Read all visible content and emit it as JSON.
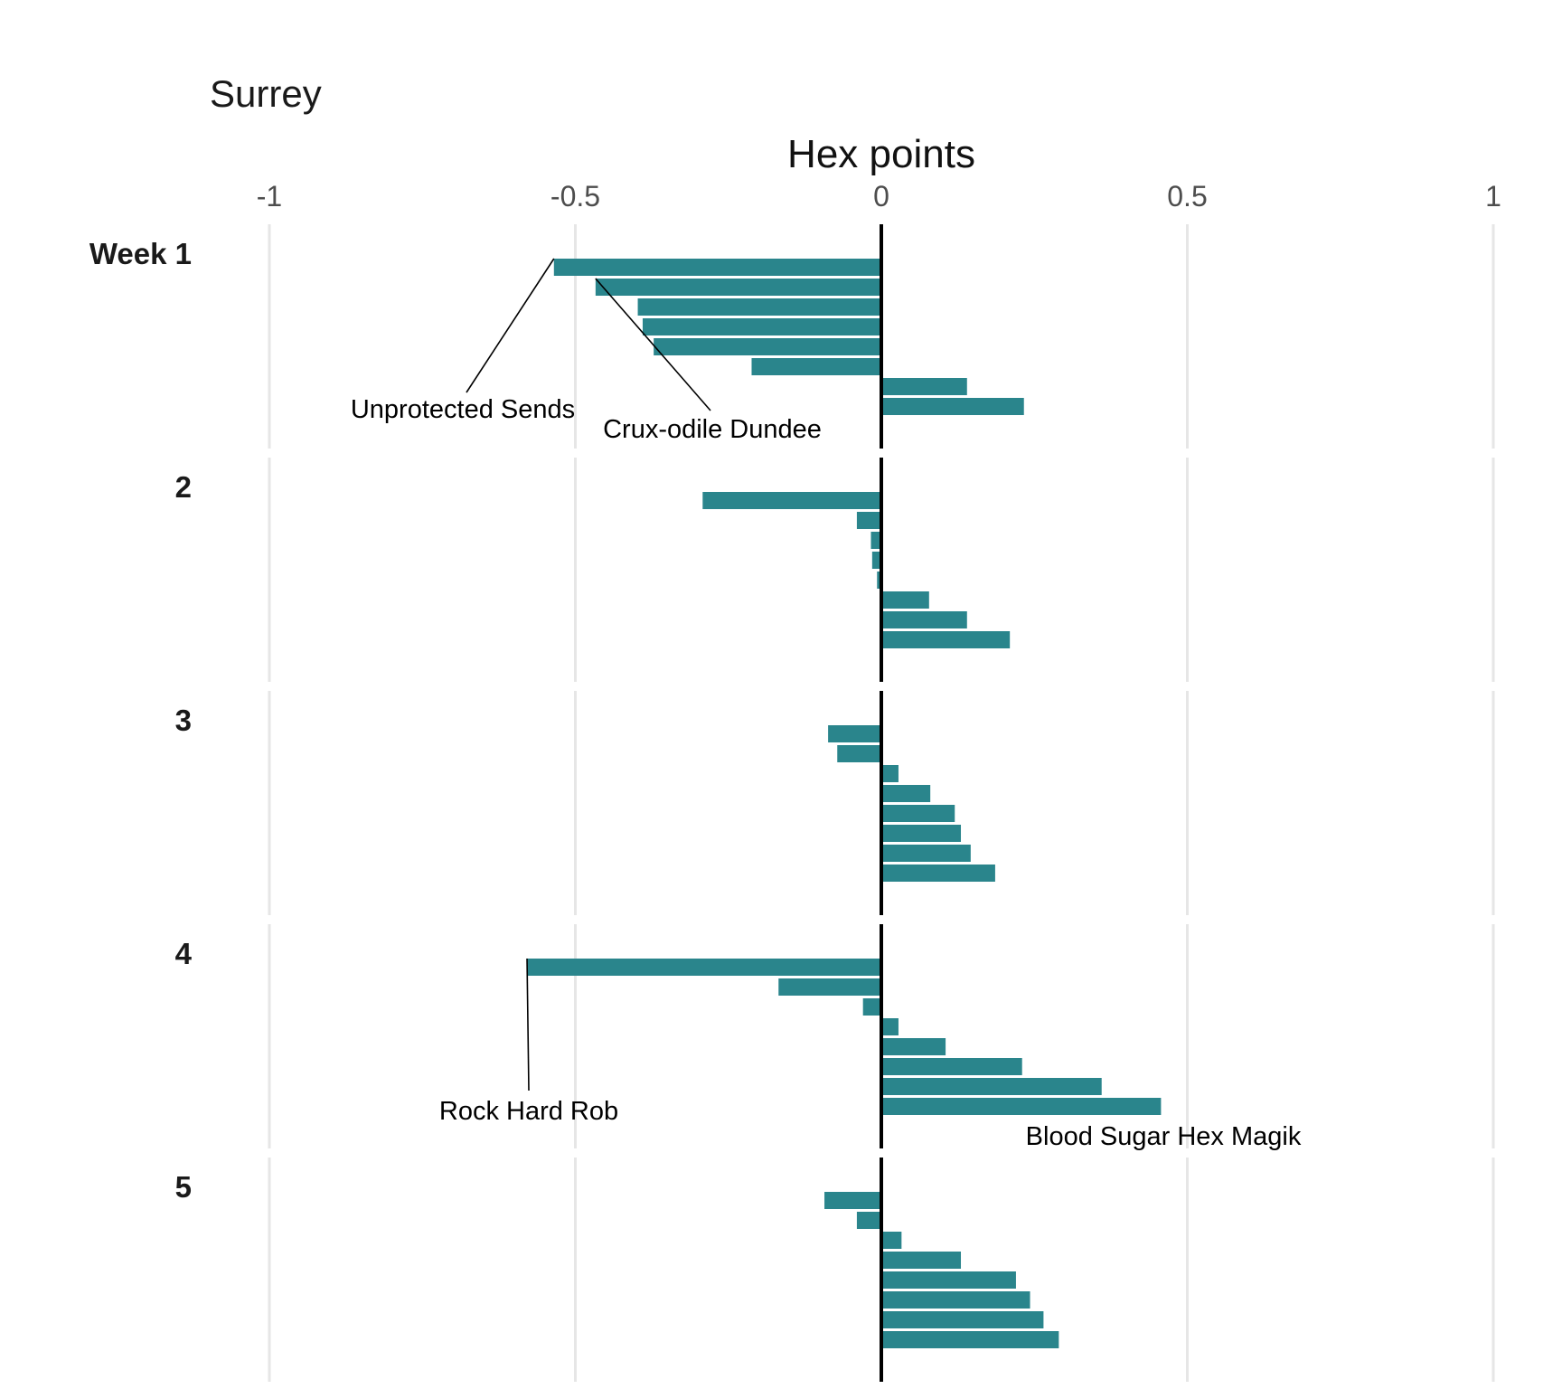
{
  "chart_data": {
    "type": "bar",
    "orientation": "horizontal",
    "subtitle": "Surrey",
    "xlabel": "Hex points",
    "xlim": [
      -1,
      1
    ],
    "x_ticks": [
      -1,
      -0.5,
      0,
      0.5,
      1
    ],
    "x_tick_labels": [
      "-1",
      "-0.5",
      "0",
      "0.5",
      "1"
    ],
    "grid": true,
    "bar_color": "#2a858c",
    "zero_line_color": "#000000",
    "panels": [
      {
        "label": "Week 1",
        "values": [
          -0.535,
          -0.467,
          -0.398,
          -0.39,
          -0.372,
          -0.212,
          0.14,
          0.233
        ]
      },
      {
        "label": "2",
        "values": [
          -0.292,
          -0.04,
          -0.017,
          -0.015,
          -0.007,
          0.078,
          0.14,
          0.21
        ]
      },
      {
        "label": "3",
        "values": [
          -0.087,
          -0.072,
          0.028,
          0.08,
          0.12,
          0.13,
          0.146,
          0.186
        ]
      },
      {
        "label": "4",
        "values": [
          -0.579,
          -0.168,
          -0.03,
          0.028,
          0.105,
          0.23,
          0.36,
          0.457
        ]
      },
      {
        "label": "5",
        "values": [
          -0.093,
          -0.04,
          0.033,
          0.13,
          0.22,
          0.243,
          0.265,
          0.29
        ]
      }
    ],
    "annotations": [
      {
        "text": "Unprotected Sends",
        "panel": 0,
        "bar": 0,
        "x": -0.535
      },
      {
        "text": "Crux-odile Dundee",
        "panel": 0,
        "bar": 1,
        "x": -0.467
      },
      {
        "text": "Rock Hard Rob",
        "panel": 3,
        "bar": 0,
        "x": -0.579
      },
      {
        "text": "Blood Sugar Hex Magik",
        "panel": 3,
        "bar": 7,
        "x": 0.457
      }
    ]
  }
}
